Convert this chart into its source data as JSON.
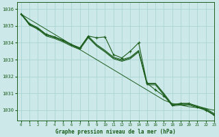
{
  "title": "Graphe pression niveau de la mer (hPa)",
  "background_color": "#cce8e8",
  "grid_color": "#aad4d4",
  "line_color": "#1a5c1a",
  "xlim": [
    -0.5,
    23
  ],
  "ylim": [
    1029.4,
    1036.4
  ],
  "xticks": [
    0,
    1,
    2,
    3,
    4,
    5,
    6,
    7,
    8,
    9,
    10,
    11,
    12,
    13,
    14,
    15,
    16,
    17,
    18,
    19,
    20,
    21,
    22,
    23
  ],
  "yticks": [
    1030,
    1031,
    1032,
    1033,
    1034,
    1035,
    1036
  ],
  "straight_line": [
    1035.7,
    1035.4,
    1035.1,
    1034.8,
    1034.5,
    1034.2,
    1033.9,
    1033.6,
    1033.3,
    1033.0,
    1032.7,
    1032.4,
    1032.1,
    1031.8,
    1031.5,
    1031.2,
    1030.9,
    1030.6,
    1030.4,
    1030.3,
    1030.2,
    1030.15,
    1030.1,
    1030.0
  ],
  "band_series": [
    [
      1035.7,
      1035.1,
      1034.85,
      1034.45,
      1034.3,
      1034.1,
      1033.85,
      1033.65,
      1034.35,
      1033.85,
      1033.5,
      1033.1,
      1032.95,
      1033.1,
      1033.5,
      1031.55,
      1031.55,
      1030.95,
      1030.3,
      1030.35,
      1030.35,
      1030.2,
      1030.05,
      1029.75
    ],
    [
      1035.7,
      1035.05,
      1034.8,
      1034.4,
      1034.25,
      1034.05,
      1033.8,
      1033.6,
      1034.3,
      1033.8,
      1033.45,
      1033.05,
      1032.9,
      1033.05,
      1033.45,
      1031.5,
      1031.5,
      1030.9,
      1030.25,
      1030.3,
      1030.3,
      1030.15,
      1030.0,
      1029.7
    ],
    [
      1035.75,
      1035.15,
      1034.9,
      1034.5,
      1034.35,
      1034.15,
      1033.9,
      1033.7,
      1034.4,
      1033.9,
      1033.55,
      1033.15,
      1033.0,
      1033.15,
      1033.55,
      1031.6,
      1031.6,
      1031.0,
      1030.35,
      1030.4,
      1030.4,
      1030.25,
      1030.1,
      1029.8
    ]
  ],
  "main_series": [
    1035.7,
    1035.1,
    1034.85,
    1034.5,
    1034.35,
    1034.15,
    1033.9,
    1033.7,
    1034.4,
    1034.3,
    1034.35,
    1033.3,
    1033.1,
    1033.5,
    1034.0,
    1031.6,
    1031.2,
    1030.85,
    1030.3,
    1030.4,
    1030.4,
    1030.2,
    1030.0,
    1029.7
  ]
}
